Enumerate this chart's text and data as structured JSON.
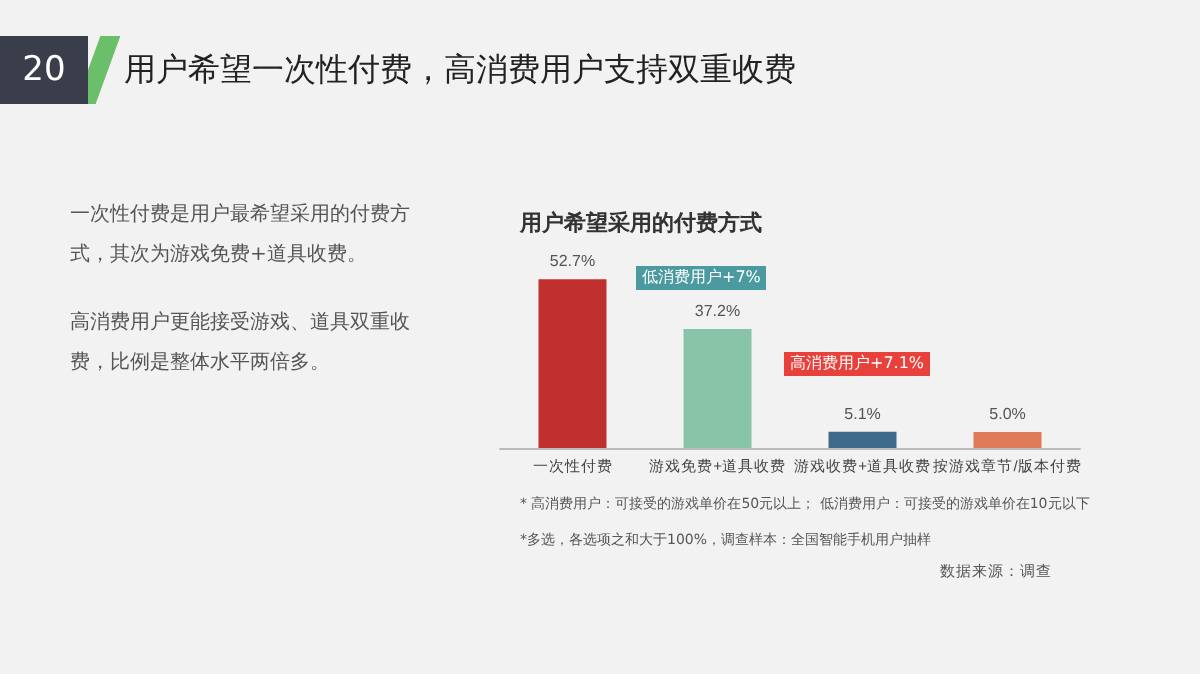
{
  "chart_data": {
    "type": "bar",
    "title": "用户希望一次性付费，高消费用户支持双重收费",
    "subtitle": "用户希望采用的付费方式",
    "categories": [
      "一次性付费",
      "游戏免费+道具收费",
      "游戏收费+道具收费",
      "按游戏章节/版本付费"
    ],
    "values": [
      52.7,
      37.2,
      5.1,
      5.0
    ],
    "colors": [
      "#c0302e",
      "#87c4a8",
      "#3d6a8a",
      "#e07b5a"
    ],
    "value_labels": [
      "52.7%",
      "37.2%",
      "5.1%",
      "5.0%"
    ],
    "annotations": [
      "20",
      "一次性付费是用户最希望采用的付费方式，其次为游戏免费+道具收费。",
      "高消费用户更能接受游戏、道具双重收费，比例是整体水平两倍多。",
      "低消费用户+7%",
      "高消费用户+7.1%",
      "* 高消费用户：可接受的游戏单价在50元以上；  低消费用户：可接受的游戏单价在10元以下",
      "*多选，各选项之和大于100%，调查样本：全国智能手机用户抽样",
      "数据来源：调查"
    ]
  }
}
